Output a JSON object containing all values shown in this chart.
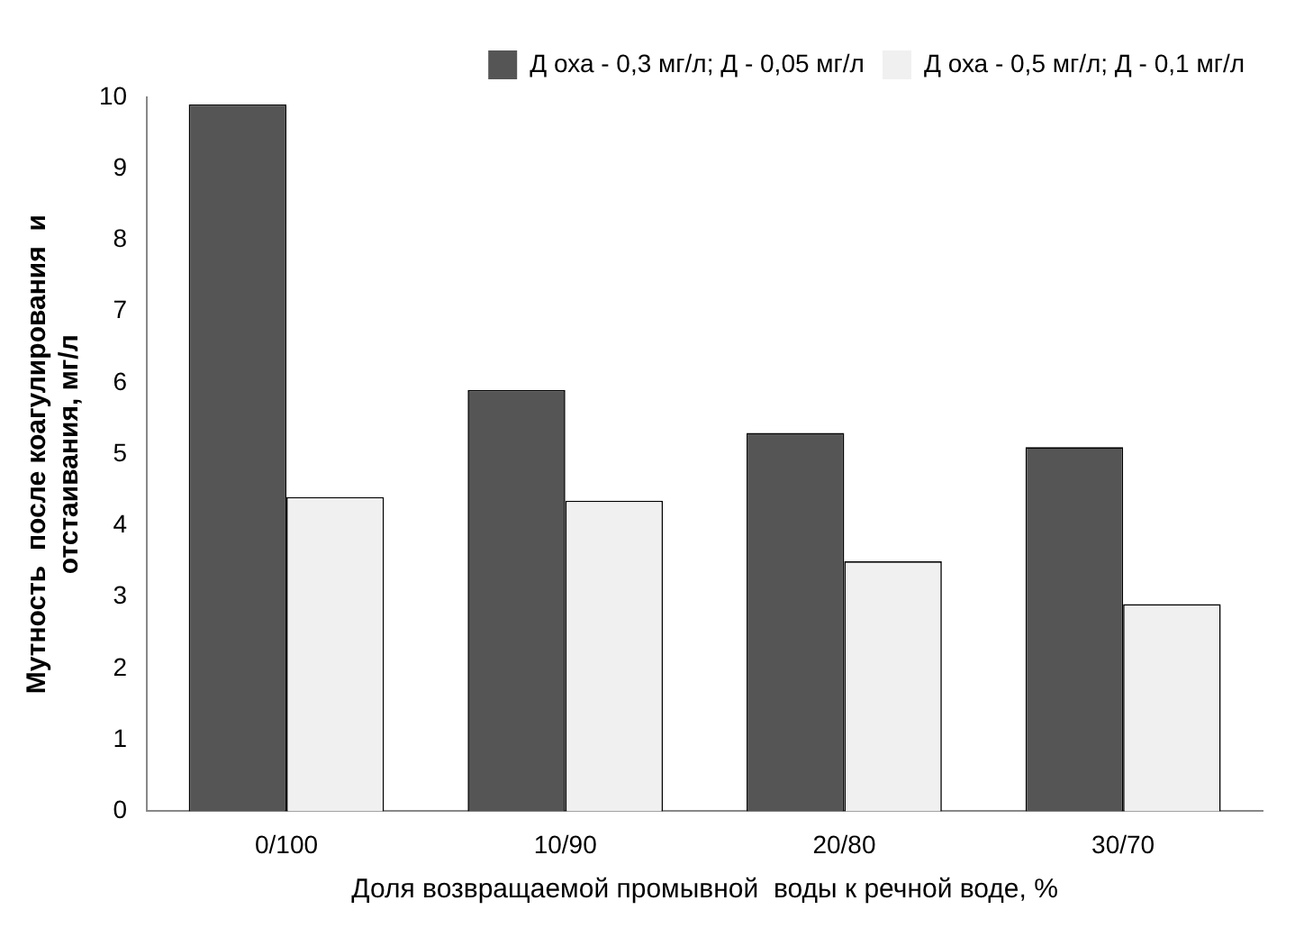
{
  "chart_data": {
    "type": "bar",
    "xlabel": "Доля возвращаемой промывной  воды к речной воде, %",
    "ylabel": "Мутность  после коагулирования  и\nотстаивания, мг/л",
    "categories": [
      "0/100",
      "10/90",
      "20/80",
      "30/70"
    ],
    "series": [
      {
        "name": "Д оха - 0,3 мг/л; Д - 0,05 мг/л",
        "color": "#555555",
        "values": [
          9.9,
          5.9,
          5.3,
          5.1
        ]
      },
      {
        "name": "Д оха - 0,5 мг/л; Д - 0,1 мг/л",
        "color": "#f0f0f0",
        "values": [
          4.4,
          4.35,
          3.5,
          2.9
        ]
      }
    ],
    "ylim": [
      0,
      10
    ],
    "yticks": [
      0,
      1,
      2,
      3,
      4,
      5,
      6,
      7,
      8,
      9,
      10
    ],
    "grid": false,
    "legend": "top right"
  }
}
